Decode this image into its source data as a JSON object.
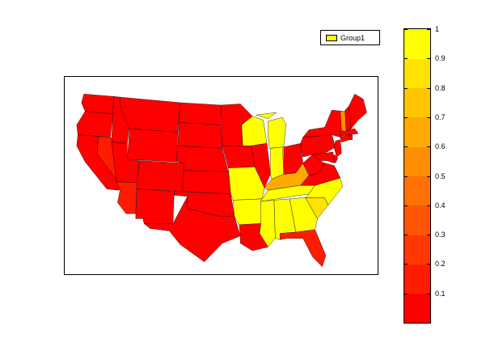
{
  "legend": {
    "label": "Group1",
    "swatch_color": "#ffff00"
  },
  "colorbar": {
    "min": 0,
    "max": 1,
    "tick_labels": [
      "0.1",
      "0.2",
      "0.3",
      "0.4",
      "0.5",
      "0.6",
      "0.7",
      "0.8",
      "0.9",
      "1"
    ],
    "tick_values": [
      0.1,
      0.2,
      0.3,
      0.4,
      0.5,
      0.6,
      0.7,
      0.8,
      0.9,
      1.0
    ],
    "colors": [
      "#ff0000",
      "#ff1c00",
      "#ff3800",
      "#ff5500",
      "#ff7100",
      "#ff8d00",
      "#ffaa00",
      "#ffc600",
      "#ffe200",
      "#ffff00"
    ]
  },
  "chart_data": {
    "type": "choropleth",
    "region": "United States",
    "scale": [
      0,
      1
    ],
    "state_values": {
      "WA": 0.0,
      "OR": 0.0,
      "CA": 0.0,
      "NV": 0.15,
      "ID": 0.0,
      "MT": 0.0,
      "WY": 0.0,
      "UT": 0.0,
      "AZ": 0.1,
      "CO": 0.0,
      "NM": 0.0,
      "ND": 0.0,
      "SD": 0.0,
      "NE": 0.0,
      "KS": 0.0,
      "OK": 0.0,
      "TX": 0.0,
      "MN": 0.0,
      "IA": 0.0,
      "MO": 1.0,
      "AR": 0.9,
      "LA": 0.0,
      "WI": 0.95,
      "IL": 0.0,
      "MI": 1.0,
      "IN": 1.0,
      "OH": 0.0,
      "KY": 0.6,
      "TN": 1.0,
      "MS": 1.0,
      "AL": 1.0,
      "GA": 1.0,
      "FL": 0.1,
      "SC": 0.85,
      "NC": 1.0,
      "VA": 0.0,
      "WV": 0.0,
      "PA": 0.0,
      "NY": 0.0,
      "NJ": 0.0,
      "DE": 0.0,
      "MD": 0.0,
      "CT": 0.0,
      "RI": 0.0,
      "MA": 0.0,
      "VT": 0.5,
      "NH": 0.0,
      "ME": 0.05
    }
  }
}
